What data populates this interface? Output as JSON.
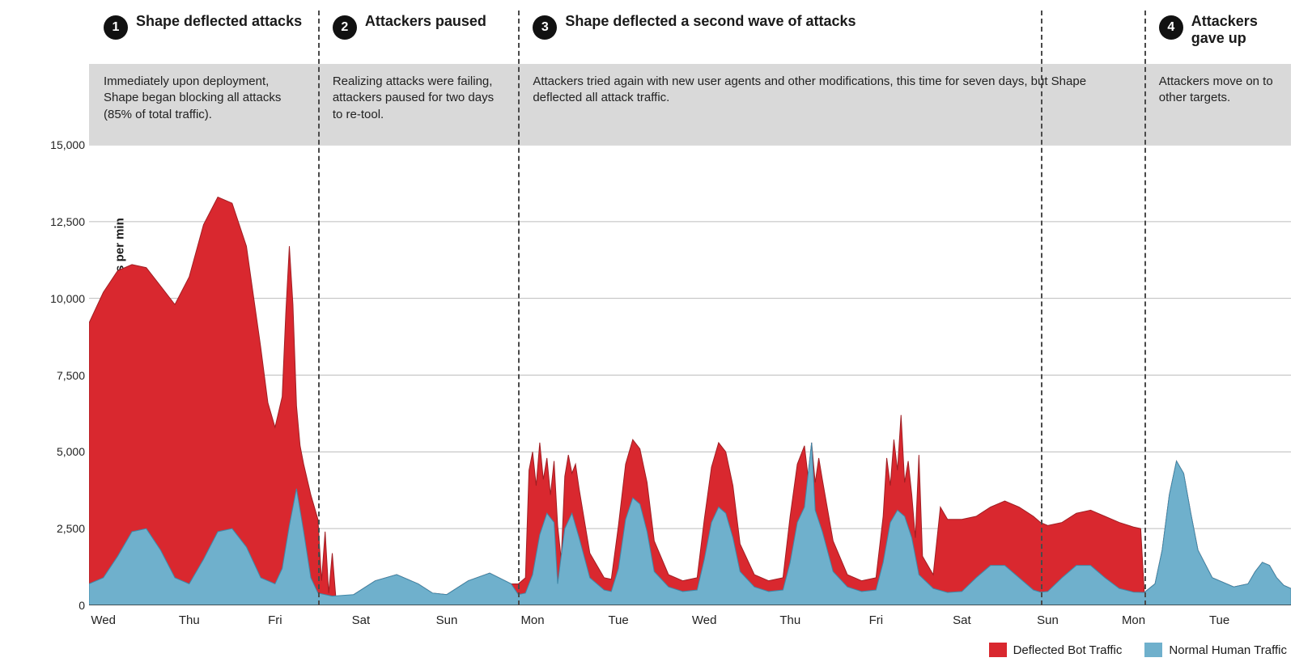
{
  "chart": {
    "type": "stacked-area",
    "y_axis": {
      "label": "Total Website Traffic - requests per min",
      "min": 0,
      "max": 15000,
      "tick_step": 2500,
      "ticks": [
        0,
        2500,
        5000,
        7500,
        10000,
        12500,
        15000
      ],
      "tick_labels": [
        "0",
        "2,500",
        "5,000",
        "7,500",
        "10,000",
        "12,500",
        "15,000"
      ],
      "label_fontsize": 15,
      "label_fontweight": "700",
      "tick_fontsize": 14
    },
    "x_axis": {
      "days": [
        "Wed",
        "Thu",
        "Fri",
        "Sat",
        "Sun",
        "Mon",
        "Tue",
        "Wed",
        "Thu",
        "Fri",
        "Sat",
        "Sun",
        "Mon",
        "Tue"
      ],
      "tick_fontsize": 15
    },
    "plot": {
      "width_units": 336,
      "height_units": 15000,
      "background": "#ffffff",
      "gridline_color": "#bdbdbd",
      "gridline_width": 1,
      "axis_color": "#333333",
      "tick_length": 6
    },
    "phase_dividers": [
      64,
      120,
      266,
      295
    ],
    "phases": [
      {
        "n": "1",
        "title": "Shape deflected attacks",
        "desc": "Immediately upon deployment, Shape began blocking all attacks (85% of total traffic).",
        "start": 0,
        "end": 64
      },
      {
        "n": "2",
        "title": "Attackers paused",
        "desc": "Realizing attacks were failing, attackers paused for two days to re-tool.",
        "start": 64,
        "end": 120
      },
      {
        "n": "3",
        "title": "Shape deflected a second wave of attacks",
        "desc": "Attackers tried again with new user agents and other modifications, this time for seven days, but Shape deflected all attack traffic.",
        "start": 120,
        "end": 295
      },
      {
        "n": "4",
        "title": "Attackers gave up",
        "desc": "Attackers move on to other targets.",
        "start": 295,
        "end": 336
      }
    ],
    "annotations_fontsize_title": 18,
    "annotations_fontsize_desc": 15,
    "badge_bg": "#111111",
    "badge_fg": "#ffffff",
    "descband_bg": "#d9d9d9",
    "divider_color": "#4a4a4a",
    "divider_dash": "7,6",
    "series": {
      "human": {
        "label": "Normal Human Traffic",
        "color": "#6fb0cc",
        "stroke": "#3f88a8",
        "points": [
          [
            0,
            700
          ],
          [
            4,
            900
          ],
          [
            8,
            1600
          ],
          [
            12,
            2400
          ],
          [
            16,
            2500
          ],
          [
            20,
            1800
          ],
          [
            24,
            900
          ],
          [
            28,
            700
          ],
          [
            32,
            1500
          ],
          [
            36,
            2400
          ],
          [
            40,
            2500
          ],
          [
            44,
            1900
          ],
          [
            48,
            900
          ],
          [
            52,
            700
          ],
          [
            54,
            1200
          ],
          [
            56,
            2600
          ],
          [
            58,
            3800
          ],
          [
            60,
            2400
          ],
          [
            62,
            900
          ],
          [
            64,
            400
          ],
          [
            68,
            300
          ],
          [
            74,
            350
          ],
          [
            80,
            800
          ],
          [
            86,
            1000
          ],
          [
            92,
            700
          ],
          [
            96,
            400
          ],
          [
            100,
            350
          ],
          [
            106,
            800
          ],
          [
            112,
            1050
          ],
          [
            118,
            700
          ],
          [
            120,
            350
          ],
          [
            122,
            400
          ],
          [
            124,
            1000
          ],
          [
            126,
            2300
          ],
          [
            128,
            3000
          ],
          [
            130,
            2700
          ],
          [
            131,
            700
          ],
          [
            133,
            2500
          ],
          [
            135,
            3000
          ],
          [
            137,
            2200
          ],
          [
            140,
            900
          ],
          [
            144,
            500
          ],
          [
            146,
            450
          ],
          [
            148,
            1200
          ],
          [
            150,
            2800
          ],
          [
            152,
            3500
          ],
          [
            154,
            3300
          ],
          [
            156,
            2400
          ],
          [
            158,
            1100
          ],
          [
            162,
            600
          ],
          [
            166,
            450
          ],
          [
            170,
            500
          ],
          [
            172,
            1500
          ],
          [
            174,
            2700
          ],
          [
            176,
            3200
          ],
          [
            178,
            3000
          ],
          [
            180,
            2200
          ],
          [
            182,
            1100
          ],
          [
            186,
            600
          ],
          [
            190,
            450
          ],
          [
            194,
            500
          ],
          [
            196,
            1400
          ],
          [
            198,
            2700
          ],
          [
            200,
            3200
          ],
          [
            202,
            5300
          ],
          [
            203,
            3100
          ],
          [
            205,
            2400
          ],
          [
            208,
            1100
          ],
          [
            212,
            600
          ],
          [
            216,
            450
          ],
          [
            220,
            500
          ],
          [
            222,
            1400
          ],
          [
            224,
            2700
          ],
          [
            226,
            3100
          ],
          [
            228,
            2900
          ],
          [
            230,
            2200
          ],
          [
            232,
            1000
          ],
          [
            236,
            550
          ],
          [
            240,
            420
          ],
          [
            244,
            450
          ],
          [
            248,
            900
          ],
          [
            252,
            1300
          ],
          [
            256,
            1300
          ],
          [
            260,
            900
          ],
          [
            264,
            500
          ],
          [
            266,
            430
          ],
          [
            268,
            450
          ],
          [
            272,
            900
          ],
          [
            276,
            1300
          ],
          [
            280,
            1300
          ],
          [
            284,
            900
          ],
          [
            288,
            550
          ],
          [
            292,
            430
          ],
          [
            295,
            420
          ],
          [
            298,
            700
          ],
          [
            300,
            1800
          ],
          [
            302,
            3600
          ],
          [
            304,
            4700
          ],
          [
            306,
            4300
          ],
          [
            308,
            3000
          ],
          [
            310,
            1800
          ],
          [
            314,
            900
          ],
          [
            320,
            600
          ],
          [
            324,
            700
          ],
          [
            326,
            1100
          ],
          [
            328,
            1400
          ],
          [
            330,
            1300
          ],
          [
            332,
            900
          ],
          [
            334,
            650
          ],
          [
            336,
            550
          ]
        ]
      },
      "bot": {
        "label": "Deflected Bot Traffic",
        "color": "#d9282f",
        "stroke": "#a01e23",
        "points": [
          [
            0,
            9200
          ],
          [
            4,
            10200
          ],
          [
            8,
            10900
          ],
          [
            12,
            11100
          ],
          [
            16,
            11000
          ],
          [
            20,
            10400
          ],
          [
            24,
            9800
          ],
          [
            28,
            10700
          ],
          [
            32,
            12400
          ],
          [
            36,
            13300
          ],
          [
            40,
            13100
          ],
          [
            44,
            11700
          ],
          [
            48,
            8400
          ],
          [
            50,
            6600
          ],
          [
            52,
            5800
          ],
          [
            54,
            6800
          ],
          [
            55,
            9500
          ],
          [
            56,
            11700
          ],
          [
            57,
            9800
          ],
          [
            58,
            6500
          ],
          [
            59,
            5200
          ],
          [
            60,
            4600
          ],
          [
            62,
            3600
          ],
          [
            64,
            2800
          ],
          [
            65,
            800
          ],
          [
            66,
            2400
          ],
          [
            67,
            400
          ],
          [
            68,
            1700
          ],
          [
            69,
            250
          ],
          [
            74,
            350
          ],
          [
            80,
            800
          ],
          [
            86,
            1000
          ],
          [
            92,
            700
          ],
          [
            96,
            400
          ],
          [
            100,
            350
          ],
          [
            106,
            800
          ],
          [
            112,
            1050
          ],
          [
            118,
            700
          ],
          [
            120,
            700
          ],
          [
            122,
            900
          ],
          [
            123,
            4400
          ],
          [
            124,
            5000
          ],
          [
            125,
            3900
          ],
          [
            126,
            5300
          ],
          [
            127,
            4100
          ],
          [
            128,
            4800
          ],
          [
            129,
            3600
          ],
          [
            130,
            4700
          ],
          [
            131,
            2600
          ],
          [
            132,
            1500
          ],
          [
            133,
            4200
          ],
          [
            134,
            4900
          ],
          [
            135,
            4300
          ],
          [
            136,
            4600
          ],
          [
            137,
            3800
          ],
          [
            140,
            1700
          ],
          [
            144,
            900
          ],
          [
            146,
            850
          ],
          [
            148,
            2600
          ],
          [
            150,
            4600
          ],
          [
            152,
            5400
          ],
          [
            154,
            5100
          ],
          [
            156,
            4000
          ],
          [
            158,
            2100
          ],
          [
            162,
            1000
          ],
          [
            166,
            800
          ],
          [
            170,
            900
          ],
          [
            172,
            2800
          ],
          [
            174,
            4500
          ],
          [
            176,
            5300
          ],
          [
            178,
            5000
          ],
          [
            180,
            3900
          ],
          [
            182,
            2000
          ],
          [
            186,
            1000
          ],
          [
            190,
            800
          ],
          [
            194,
            900
          ],
          [
            196,
            2900
          ],
          [
            198,
            4600
          ],
          [
            200,
            5200
          ],
          [
            201,
            4200
          ],
          [
            202,
            5300
          ],
          [
            203,
            4000
          ],
          [
            204,
            4800
          ],
          [
            205,
            4100
          ],
          [
            208,
            2100
          ],
          [
            212,
            1000
          ],
          [
            216,
            800
          ],
          [
            220,
            900
          ],
          [
            222,
            2900
          ],
          [
            223,
            4800
          ],
          [
            224,
            3900
          ],
          [
            225,
            5400
          ],
          [
            226,
            4400
          ],
          [
            227,
            6200
          ],
          [
            228,
            4000
          ],
          [
            229,
            4700
          ],
          [
            230,
            3600
          ],
          [
            231,
            2200
          ],
          [
            232,
            4900
          ],
          [
            233,
            1600
          ],
          [
            236,
            1000
          ],
          [
            238,
            3200
          ],
          [
            240,
            2800
          ],
          [
            244,
            2800
          ],
          [
            248,
            2900
          ],
          [
            252,
            3200
          ],
          [
            256,
            3400
          ],
          [
            260,
            3200
          ],
          [
            264,
            2900
          ],
          [
            266,
            2700
          ],
          [
            268,
            2600
          ],
          [
            272,
            2700
          ],
          [
            276,
            3000
          ],
          [
            280,
            3100
          ],
          [
            284,
            2900
          ],
          [
            288,
            2700
          ],
          [
            292,
            2550
          ],
          [
            294,
            2500
          ],
          [
            295,
            420
          ],
          [
            298,
            700
          ],
          [
            300,
            1800
          ],
          [
            302,
            3600
          ],
          [
            304,
            4700
          ],
          [
            306,
            4300
          ],
          [
            308,
            3000
          ],
          [
            310,
            1800
          ],
          [
            314,
            900
          ],
          [
            320,
            600
          ],
          [
            324,
            700
          ],
          [
            326,
            1100
          ],
          [
            328,
            1400
          ],
          [
            330,
            1300
          ],
          [
            332,
            900
          ],
          [
            334,
            650
          ],
          [
            336,
            550
          ]
        ]
      }
    },
    "legend": {
      "fontsize": 15,
      "swatch_w": 22,
      "swatch_h": 18
    }
  }
}
